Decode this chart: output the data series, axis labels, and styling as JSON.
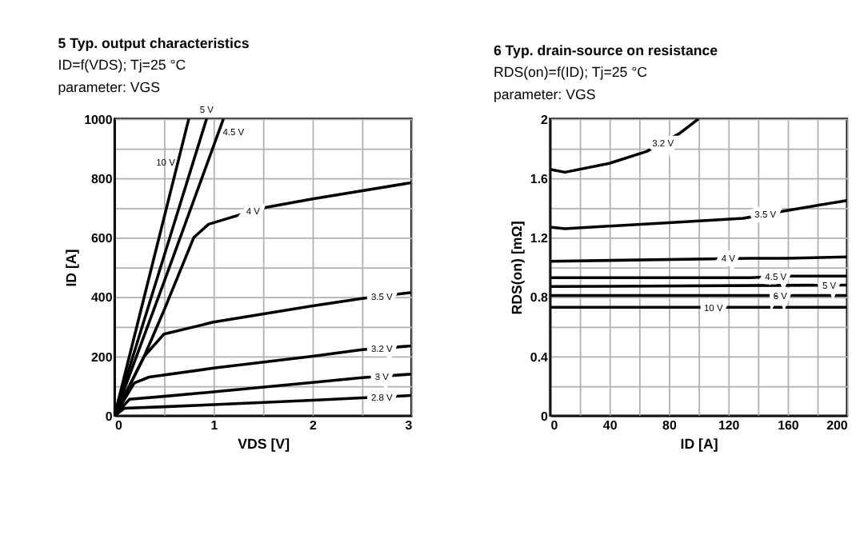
{
  "chart_data": [
    {
      "type": "line",
      "title": "5 Typ. output characteristics",
      "subtitle": "ID=f(VDS); Tj=25 °C\nparameter: VGS",
      "xlabel": "VDS [V]",
      "ylabel": "ID [A]",
      "xlim": [
        0,
        3
      ],
      "ylim": [
        0,
        1000
      ],
      "xticks": [
        0,
        {
          "value": 0.5,
          "label": null
        },
        1,
        {
          "value": 1.5,
          "label": null
        },
        2,
        {
          "value": 2.5,
          "label": null
        },
        3
      ],
      "yticks": [
        0,
        {
          "value": 100,
          "label": null
        },
        200,
        {
          "value": 300,
          "label": null
        },
        400,
        {
          "value": 500,
          "label": null
        },
        600,
        {
          "value": 700,
          "label": null
        },
        800,
        {
          "value": 900,
          "label": null
        },
        1000
      ],
      "grid": true,
      "legend": false,
      "marker": "none",
      "line_style": "solid",
      "series": [
        {
          "color": "#000000",
          "x": [
            0,
            0.3,
            0.75
          ],
          "values": [
            0,
            400,
            1000
          ]
        },
        {
          "color": "#000000",
          "x": [
            0,
            0.4,
            0.93
          ],
          "values": [
            0,
            430,
            1000
          ]
        },
        {
          "color": "#000000",
          "x": [
            0,
            0.5,
            1.1
          ],
          "values": [
            0,
            450,
            1000
          ]
        },
        {
          "color": "#000000",
          "x": [
            0,
            0.3,
            0.5,
            0.8,
            0.95,
            1.5,
            2,
            3
          ],
          "values": [
            0,
            200,
            355,
            600,
            645,
            700,
            730,
            785
          ]
        },
        {
          "color": "#000000",
          "x": [
            0,
            0.3,
            0.5,
            1,
            2,
            2.5,
            3
          ],
          "values": [
            0,
            200,
            275,
            315,
            370,
            395,
            415
          ]
        },
        {
          "color": "#000000",
          "x": [
            0,
            0.2,
            0.35,
            1,
            2,
            2.5,
            3
          ],
          "values": [
            0,
            110,
            130,
            160,
            200,
            222,
            235
          ]
        },
        {
          "color": "#000000",
          "x": [
            0,
            0.15,
            0.5,
            1,
            2,
            2.5,
            3
          ],
          "values": [
            0,
            55,
            65,
            80,
            112,
            128,
            140
          ]
        },
        {
          "color": "#000000",
          "x": [
            0,
            0.1,
            0.5,
            1,
            2,
            2.5,
            3
          ],
          "values": [
            0,
            25,
            30,
            37,
            52,
            60,
            68
          ]
        }
      ],
      "annotations": [
        {
          "text": "10 V",
          "x": 0.64,
          "y": 853
        },
        {
          "text": "5 V",
          "x": 0.93,
          "y": 1000
        },
        {
          "text": "4.5 V",
          "x": 1.05,
          "y": 954
        },
        {
          "text": "4 V",
          "x": 1.4,
          "y": 690
        },
        {
          "text": "3.5 V",
          "x": 2.7,
          "y": 403
        },
        {
          "text": "3.2 V",
          "x": 2.7,
          "y": 227
        },
        {
          "text": "3 V",
          "x": 2.7,
          "y": 133
        },
        {
          "text": "2.8 V",
          "x": 2.7,
          "y": 63
        }
      ]
    },
    {
      "type": "line",
      "title": "6 Typ. drain-source on resistance",
      "subtitle": "RDS(on)=f(ID); Tj=25 °C\nparameter: VGS",
      "xlabel": "ID [A]",
      "ylabel": "RDS(on) [mΩ]",
      "xlim": [
        0,
        200
      ],
      "ylim": [
        0,
        2
      ],
      "xticks": [
        0,
        {
          "value": 20,
          "label": null
        },
        40,
        {
          "value": 60,
          "label": null
        },
        80,
        {
          "value": 100,
          "label": null
        },
        120,
        {
          "value": 140,
          "label": null
        },
        160,
        {
          "value": 180,
          "label": null
        },
        200
      ],
      "yticks": [
        0,
        {
          "value": 0.2,
          "label": null
        },
        0.4,
        {
          "value": 0.6,
          "label": null
        },
        0.8,
        {
          "value": 1,
          "label": null
        },
        1.2,
        {
          "value": 1.4,
          "label": null
        },
        1.6,
        {
          "value": 1.8,
          "label": null
        },
        2
      ],
      "grid": true,
      "legend": false,
      "marker": "none",
      "line_style": "solid",
      "series": [
        {
          "color": "#000000",
          "x": [
            0,
            10,
            40,
            65,
            87,
            100
          ],
          "values": [
            1.66,
            1.64,
            1.7,
            1.78,
            1.9,
            2
          ]
        },
        {
          "color": "#000000",
          "x": [
            0,
            10,
            80,
            130,
            158,
            200
          ],
          "values": [
            1.27,
            1.26,
            1.3,
            1.33,
            1.38,
            1.45
          ]
        },
        {
          "color": "#000000",
          "x": [
            0,
            135,
            158,
            200
          ],
          "values": [
            1.04,
            1.06,
            1.06,
            1.07
          ]
        },
        {
          "color": "#000000",
          "x": [
            0,
            135,
            158,
            200
          ],
          "values": [
            0.93,
            0.93,
            0.94,
            0.94
          ]
        },
        {
          "color": "#000000",
          "x": [
            0,
            200
          ],
          "values": [
            0.87,
            0.88
          ]
        },
        {
          "color": "#000000",
          "x": [
            0,
            200
          ],
          "values": [
            0.81,
            0.81
          ]
        },
        {
          "color": "#000000",
          "x": [
            0,
            200
          ],
          "values": [
            0.73,
            0.73
          ]
        }
      ],
      "annotations": [
        {
          "text": "3.2 V",
          "x": 76,
          "y": 1.84
        },
        {
          "text": "3.5 V",
          "x": 145,
          "y": 1.36
        },
        {
          "text": "4 V",
          "x": 120,
          "y": 1.06
        },
        {
          "text": "4.5 V",
          "x": 152,
          "y": 0.94
        },
        {
          "text": "5 V",
          "x": 188,
          "y": 0.88
        },
        {
          "text": "6 V",
          "x": 155,
          "y": 0.81
        },
        {
          "text": "10 V",
          "x": 110,
          "y": 0.73
        }
      ]
    }
  ]
}
